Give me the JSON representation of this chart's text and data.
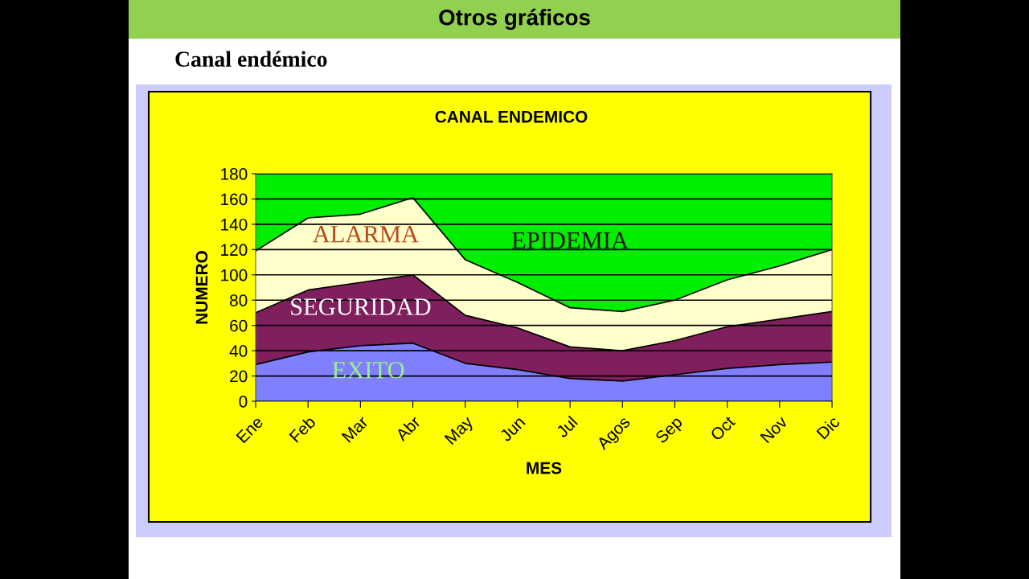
{
  "chart_data": {
    "type": "area",
    "title": "CANAL ENDEMICO",
    "xlabel": "MES",
    "ylabel": "NUMERO",
    "stacked": true,
    "annotations": [
      "Otros gráficos",
      "Canal endémico"
    ],
    "categories": [
      "Ene",
      "Feb",
      "Mar",
      "Abr",
      "May",
      "Jun",
      "Jul",
      "Agos",
      "Sep",
      "Oct",
      "Nov",
      "Dic"
    ],
    "series": [
      {
        "name": "EXITO",
        "color": "#8080ff",
        "values": [
          29,
          39,
          44,
          46,
          30,
          25,
          18,
          16,
          21,
          26,
          29,
          31
        ]
      },
      {
        "name": "SEGURIDAD",
        "color": "#801f5e",
        "values": [
          41,
          49,
          50,
          54,
          38,
          33,
          25,
          24,
          27,
          33,
          36,
          40
        ]
      },
      {
        "name": "ALARMA",
        "color": "#ffffcc",
        "values": [
          49,
          57,
          54,
          61,
          44,
          36,
          31,
          31,
          32,
          37,
          42,
          49
        ]
      },
      {
        "name": "EPIDEMIA",
        "color": "#00ee00",
        "values": [
          61,
          35,
          32,
          19,
          68,
          86,
          106,
          109,
          100,
          84,
          73,
          60
        ]
      }
    ],
    "ylim": [
      0,
      180
    ],
    "yticks": [
      0,
      20,
      40,
      60,
      80,
      100,
      120,
      140,
      160,
      180
    ],
    "grid": "y",
    "legend": false
  }
}
